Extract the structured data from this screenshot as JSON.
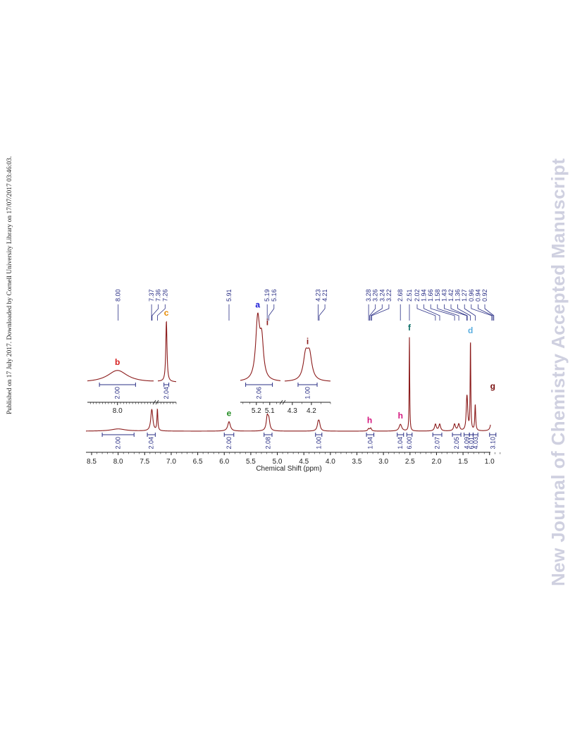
{
  "side_note": "Published on 17 July 2017. Downloaded by Cornell University Library on 17/07/2017 03:46:03.",
  "watermark": "New Journal of Chemistry Accepted Manuscript",
  "colors": {
    "spectrum": "#8b1a1a",
    "annotation": "#2a2f86",
    "axis": "#222222",
    "watermark": "#cfd0e0"
  },
  "chart_data": {
    "type": "line",
    "xlabel": "Chemical Shift (ppm)",
    "xlim": [
      8.5,
      0.75
    ],
    "x_ticks": [
      "8.5",
      "8.0",
      "7.5",
      "7.0",
      "6.5",
      "6.0",
      "5.5",
      "5.0",
      "4.5",
      "4.0",
      "3.5",
      "3.0",
      "2.5",
      "2.0",
      "1.5",
      "1.0"
    ],
    "peak_shift_labels": [
      "8.00",
      "7.37",
      "7.36",
      "7.26",
      "5.91",
      "5.19",
      "5.16",
      "4.23",
      "4.21",
      "3.28",
      "3.26",
      "3.24",
      "3.22",
      "2.68",
      "2.51",
      "2.02",
      "1.94",
      "1.66",
      "1.58",
      "1.43",
      "1.42",
      "1.36",
      "1.27",
      "0.96",
      "0.94",
      "0.92"
    ],
    "main_peaks": [
      {
        "ppm": 8.0,
        "height": 0.1,
        "width": 0.16
      },
      {
        "ppm": 7.37,
        "height": 0.55,
        "width": 0.022
      },
      {
        "ppm": 7.36,
        "height": 0.45,
        "width": 0.022
      },
      {
        "ppm": 7.26,
        "height": 0.95,
        "width": 0.01
      },
      {
        "ppm": 5.91,
        "height": 0.42,
        "width": 0.03
      },
      {
        "ppm": 5.19,
        "height": 0.6,
        "width": 0.022
      },
      {
        "ppm": 5.16,
        "height": 0.45,
        "width": 0.022
      },
      {
        "ppm": 4.23,
        "height": 0.3,
        "width": 0.022
      },
      {
        "ppm": 4.21,
        "height": 0.3,
        "width": 0.022
      },
      {
        "ppm": 3.28,
        "height": 0.1,
        "width": 0.018
      },
      {
        "ppm": 3.24,
        "height": 0.13,
        "width": 0.018
      },
      {
        "ppm": 2.68,
        "height": 0.3,
        "width": 0.03
      },
      {
        "ppm": 2.51,
        "height": 4.2,
        "width": 0.006
      },
      {
        "ppm": 2.02,
        "height": 0.3,
        "width": 0.02
      },
      {
        "ppm": 1.94,
        "height": 0.3,
        "width": 0.02
      },
      {
        "ppm": 1.66,
        "height": 0.3,
        "width": 0.02
      },
      {
        "ppm": 1.58,
        "height": 0.3,
        "width": 0.02
      },
      {
        "ppm": 1.43,
        "height": 0.95,
        "width": 0.014
      },
      {
        "ppm": 1.42,
        "height": 0.8,
        "width": 0.014
      },
      {
        "ppm": 1.36,
        "height": 4.0,
        "width": 0.007
      },
      {
        "ppm": 1.27,
        "height": 1.15,
        "width": 0.01
      },
      {
        "ppm": 0.96,
        "height": 0.8,
        "width": 0.012
      },
      {
        "ppm": 0.94,
        "height": 1.2,
        "width": 0.012
      },
      {
        "ppm": 0.92,
        "height": 0.8,
        "width": 0.012
      }
    ],
    "integrals": [
      {
        "label": "2.00",
        "from": 8.3,
        "to": 7.7
      },
      {
        "label": "2.04",
        "from": 7.45,
        "to": 7.3
      },
      {
        "label": "2.00",
        "from": 6.0,
        "to": 5.82
      },
      {
        "label": "2.08",
        "from": 5.25,
        "to": 5.1
      },
      {
        "label": "1.00",
        "from": 4.28,
        "to": 4.16
      },
      {
        "label": "1.04",
        "from": 3.32,
        "to": 3.18
      },
      {
        "label": "1.04",
        "from": 2.74,
        "to": 2.62
      },
      {
        "label": "6.00",
        "from": 2.56,
        "to": 2.46
      },
      {
        "label": "2.07",
        "from": 2.07,
        "to": 1.9
      },
      {
        "label": "2.05",
        "from": 1.7,
        "to": 1.54
      },
      {
        "label": "4.09",
        "from": 1.48,
        "to": 1.38
      },
      {
        "label": "6.01",
        "from": 1.38,
        "to": 1.31
      },
      {
        "label": "4.03",
        "from": 1.31,
        "to": 1.22
      },
      {
        "label": "3.10",
        "from": 1.0,
        "to": 0.88
      }
    ],
    "assignments": [
      {
        "label": "e",
        "ppm": 5.91,
        "color": "#1e8a1e"
      },
      {
        "label": "h",
        "ppm": 3.26,
        "color": "#d4157e"
      },
      {
        "label": "h",
        "ppm": 2.68,
        "color": "#d4157e"
      },
      {
        "label": "f",
        "ppm": 2.51,
        "color": "#0f6f68"
      },
      {
        "label": "d",
        "ppm": 1.36,
        "color": "#5aaee0"
      },
      {
        "label": "g",
        "ppm": 0.94,
        "color": "#7a1010"
      }
    ],
    "inset_left": {
      "x_ticks": [
        "8.0"
      ],
      "break": true,
      "peaks": [
        {
          "ppm": 8.0,
          "height": 0.2,
          "width": 0.2
        },
        {
          "ppm": 7.26,
          "height": 1.0,
          "width": 0.012
        }
      ],
      "integrals": [
        {
          "label": "2.00",
          "from": 8.3,
          "to": 7.7
        },
        {
          "label": "2.04",
          "from": 7.3,
          "to": 7.22
        }
      ],
      "assignments": [
        {
          "label": "b",
          "ppm": 8.0,
          "color": "#d62020"
        },
        {
          "label": "c",
          "ppm": 7.26,
          "color": "#e68a00"
        }
      ]
    },
    "inset_right": {
      "x_ticks": [
        "5.2",
        "5.1",
        "4.3",
        "4.2"
      ],
      "break": true,
      "peaks": [
        {
          "ppm": 5.19,
          "height": 1.0,
          "width": 0.018
        },
        {
          "ppm": 5.16,
          "height": 0.6,
          "width": 0.016
        },
        {
          "ppm": 4.23,
          "height": 0.4,
          "width": 0.015
        },
        {
          "ppm": 4.21,
          "height": 0.4,
          "width": 0.015
        }
      ],
      "integrals": [
        {
          "label": "2.06",
          "from": 5.28,
          "to": 5.08
        },
        {
          "label": "1.00",
          "from": 4.27,
          "to": 4.17
        }
      ],
      "assignments": [
        {
          "label": "a",
          "ppm": 5.19,
          "color": "#1818d6"
        },
        {
          "label": "i",
          "ppm": 5.16,
          "color": "#8b1a1a"
        },
        {
          "label": "i",
          "ppm": 4.22,
          "color": "#8b1a1a"
        }
      ]
    }
  }
}
